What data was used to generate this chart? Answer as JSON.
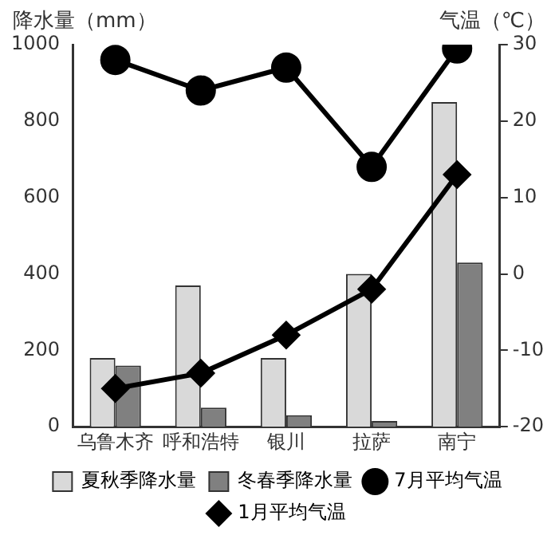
{
  "chart_data": {
    "type": "bar",
    "ylabel": "降水量（mm）",
    "y2label": "气温（℃）",
    "categories": [
      "乌鲁木齐",
      "呼和浩特",
      "银川",
      "拉萨",
      "南宁"
    ],
    "series": [
      {
        "name": "夏秋季降水量",
        "color": "#d9d9d9",
        "values": [
          180,
          370,
          180,
          400,
          850
        ]
      },
      {
        "name": "冬春季降水量",
        "color": "#808080",
        "values": [
          160,
          50,
          30,
          15,
          430
        ]
      },
      {
        "name": "7月平均气温",
        "type": "line",
        "axis": "y2",
        "marker": "circle",
        "color": "#000000",
        "values": [
          28,
          24,
          27,
          14,
          29.5
        ]
      },
      {
        "name": "1月平均气温",
        "type": "line",
        "axis": "y2",
        "marker": "diamond",
        "color": "#000000",
        "values": [
          -15,
          -13,
          -8,
          -2,
          13
        ]
      }
    ],
    "ylim": [
      0,
      1000
    ],
    "yticks": [
      0,
      200,
      400,
      600,
      800,
      1000
    ],
    "y2lim": [
      -20,
      30
    ],
    "y2ticks": [
      -20,
      -10,
      0,
      10,
      20,
      30
    ],
    "grid": false,
    "legend": "bottom"
  }
}
